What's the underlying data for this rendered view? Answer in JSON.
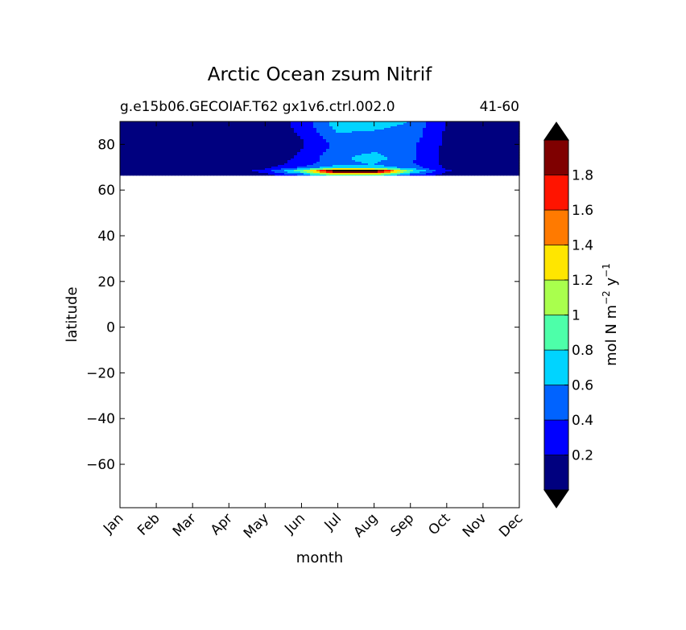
{
  "chart_data": {
    "type": "heatmap",
    "title": "Arctic Ocean zsum Nitrif",
    "subtitle_left": "g.e15b06.GECOIAF.T62 gx1v6.ctrl.002.0",
    "subtitle_right": "41-60",
    "xlabel": "month",
    "ylabel": "latitude",
    "x_ticks": [
      "Jan",
      "Feb",
      "Mar",
      "Apr",
      "May",
      "Jun",
      "Jul",
      "Aug",
      "Sep",
      "Oct",
      "Nov",
      "Dec"
    ],
    "y_ticks": [
      "80",
      "60",
      "40",
      "20",
      "0",
      "−20",
      "−40",
      "−60"
    ],
    "y_tick_values": [
      80,
      60,
      40,
      20,
      0,
      -20,
      -40,
      -60
    ],
    "ylim": [
      -79,
      90
    ],
    "xlim": [
      0,
      11
    ],
    "data_lat_range": [
      66.5,
      90
    ],
    "colorbar": {
      "label_base": "mol N m",
      "label_sup1": "−2",
      "label_mid": " y",
      "label_sup2": "−1",
      "levels": [
        0,
        0.2,
        0.4,
        0.6,
        0.8,
        1.0,
        1.2,
        1.4,
        1.6,
        1.8,
        2.0
      ],
      "tick_labels": [
        "0.2",
        "0.4",
        "0.6",
        "0.8",
        "1",
        "1.2",
        "1.4",
        "1.6",
        "1.8"
      ],
      "tick_values": [
        0.2,
        0.4,
        0.6,
        0.8,
        1.0,
        1.2,
        1.4,
        1.6,
        1.8
      ],
      "colors": [
        "#00007f",
        "#0000ff",
        "#0063ff",
        "#00d4ff",
        "#4dffa9",
        "#a9ff4d",
        "#ffe600",
        "#ff7a00",
        "#ff1400",
        "#7f0000"
      ],
      "under_color": "#ffffff",
      "over_color": "#000000"
    },
    "latitudes": [
      66.5,
      67,
      67.5,
      68,
      68.5,
      69,
      69.5,
      70,
      71,
      72,
      74,
      76,
      78,
      80,
      83,
      86,
      88,
      90
    ],
    "values": [
      [
        0.03,
        0.03,
        0.03,
        0.04,
        0.1,
        0.45,
        1.0,
        0.95,
        0.4,
        0.1,
        0.03,
        0.03
      ],
      [
        0.03,
        0.03,
        0.03,
        0.05,
        0.15,
        0.55,
        1.3,
        1.25,
        0.55,
        0.15,
        0.03,
        0.03
      ],
      [
        0.03,
        0.03,
        0.03,
        0.06,
        0.2,
        0.7,
        1.7,
        1.65,
        0.65,
        0.15,
        0.04,
        0.03
      ],
      [
        0.03,
        0.03,
        0.03,
        0.07,
        0.25,
        0.9,
        2.1,
        2.1,
        0.8,
        0.2,
        0.04,
        0.03
      ],
      [
        0.03,
        0.03,
        0.03,
        0.07,
        0.28,
        0.95,
        2.2,
        2.2,
        0.85,
        0.22,
        0.04,
        0.03
      ],
      [
        0.03,
        0.03,
        0.03,
        0.06,
        0.22,
        0.75,
        1.5,
        1.45,
        0.72,
        0.2,
        0.04,
        0.03
      ],
      [
        0.03,
        0.03,
        0.03,
        0.05,
        0.18,
        0.55,
        1.0,
        0.95,
        0.6,
        0.18,
        0.04,
        0.03
      ],
      [
        0.03,
        0.03,
        0.03,
        0.04,
        0.14,
        0.42,
        0.75,
        0.72,
        0.5,
        0.16,
        0.04,
        0.03
      ],
      [
        0.03,
        0.03,
        0.03,
        0.03,
        0.1,
        0.32,
        0.58,
        0.6,
        0.45,
        0.15,
        0.04,
        0.03
      ],
      [
        0.03,
        0.03,
        0.03,
        0.03,
        0.08,
        0.28,
        0.55,
        0.62,
        0.42,
        0.14,
        0.04,
        0.03
      ],
      [
        0.03,
        0.03,
        0.03,
        0.03,
        0.06,
        0.25,
        0.55,
        0.7,
        0.45,
        0.14,
        0.04,
        0.03
      ],
      [
        0.03,
        0.03,
        0.03,
        0.03,
        0.05,
        0.22,
        0.52,
        0.62,
        0.45,
        0.14,
        0.04,
        0.03
      ],
      [
        0.03,
        0.03,
        0.03,
        0.03,
        0.05,
        0.2,
        0.48,
        0.55,
        0.45,
        0.14,
        0.04,
        0.03
      ],
      [
        0.03,
        0.03,
        0.03,
        0.03,
        0.04,
        0.18,
        0.45,
        0.5,
        0.45,
        0.15,
        0.04,
        0.03
      ],
      [
        0.03,
        0.03,
        0.03,
        0.03,
        0.04,
        0.2,
        0.55,
        0.55,
        0.5,
        0.16,
        0.04,
        0.03
      ],
      [
        0.03,
        0.03,
        0.03,
        0.03,
        0.05,
        0.24,
        0.62,
        0.6,
        0.52,
        0.17,
        0.04,
        0.03
      ],
      [
        0.03,
        0.03,
        0.03,
        0.03,
        0.05,
        0.26,
        0.68,
        0.66,
        0.56,
        0.18,
        0.04,
        0.03
      ],
      [
        0.03,
        0.03,
        0.03,
        0.03,
        0.05,
        0.28,
        0.72,
        0.7,
        0.6,
        0.18,
        0.04,
        0.03
      ]
    ]
  }
}
